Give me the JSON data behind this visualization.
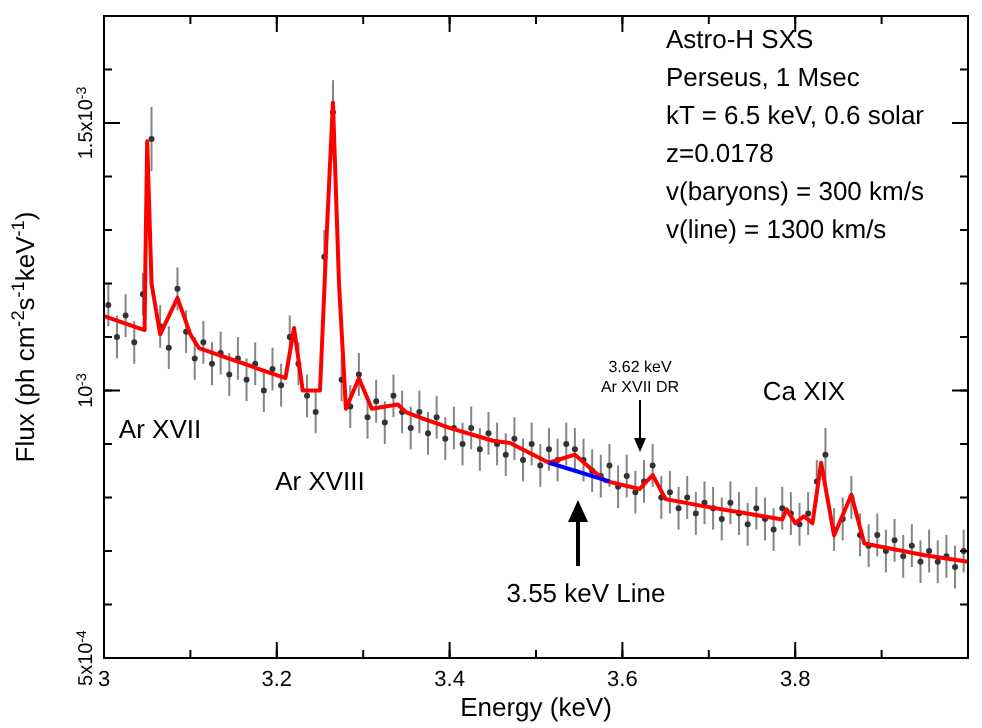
{
  "chart_data": {
    "type": "scatter",
    "xlabel": "Energy (keV)",
    "ylabel": "Flux (ph cm$^{-2}$s$^{-1}$keV$^{-1}$)",
    "xlim": [
      3,
      4
    ],
    "xticks": [
      3,
      3.2,
      3.4,
      3.6,
      3.8
    ],
    "ylim": [
      0.0005,
      0.0017
    ],
    "yticks": [
      {
        "value": 0.0005,
        "label": "5x10$^{-4}$"
      },
      {
        "value": 0.001,
        "label": "10$^{-3}$"
      },
      {
        "value": 0.0015,
        "label": "1.5x10$^{-3}$"
      }
    ],
    "grid": false,
    "series": [
      {
        "color": "#333333",
        "marker": "circle",
        "x": [
          3.005,
          3.015,
          3.025,
          3.035,
          3.045,
          3.055,
          3.065,
          3.075,
          3.085,
          3.095,
          3.105,
          3.115,
          3.125,
          3.135,
          3.145,
          3.155,
          3.165,
          3.175,
          3.185,
          3.195,
          3.205,
          3.215,
          3.225,
          3.235,
          3.245,
          3.255,
          3.265,
          3.275,
          3.285,
          3.295,
          3.305,
          3.315,
          3.325,
          3.335,
          3.345,
          3.355,
          3.365,
          3.375,
          3.385,
          3.395,
          3.405,
          3.415,
          3.425,
          3.435,
          3.445,
          3.455,
          3.465,
          3.475,
          3.485,
          3.495,
          3.505,
          3.515,
          3.525,
          3.535,
          3.545,
          3.555,
          3.565,
          3.575,
          3.585,
          3.595,
          3.605,
          3.615,
          3.625,
          3.635,
          3.645,
          3.655,
          3.665,
          3.675,
          3.685,
          3.695,
          3.705,
          3.715,
          3.725,
          3.735,
          3.745,
          3.755,
          3.765,
          3.775,
          3.785,
          3.795,
          3.805,
          3.815,
          3.825,
          3.835,
          3.845,
          3.855,
          3.865,
          3.875,
          3.885,
          3.895,
          3.905,
          3.915,
          3.925,
          3.935,
          3.945,
          3.955,
          3.965,
          3.975,
          3.985,
          3.995
        ],
        "values": [
          0.00116,
          0.0011,
          0.00114,
          0.00109,
          0.00118,
          0.00147,
          0.00112,
          0.00108,
          0.00119,
          0.00111,
          0.00106,
          0.00109,
          0.00105,
          0.00107,
          0.00103,
          0.00106,
          0.00102,
          0.00105,
          0.001,
          0.00104,
          0.00101,
          0.0011,
          0.00105,
          0.00099,
          0.00096,
          0.00125,
          0.00152,
          0.00102,
          0.00097,
          0.00103,
          0.00095,
          0.00098,
          0.00094,
          0.00099,
          0.00096,
          0.00093,
          0.00096,
          0.00092,
          0.00095,
          0.00091,
          0.00093,
          0.0009,
          0.00093,
          0.00089,
          0.00092,
          0.0009,
          0.00088,
          0.00091,
          0.00087,
          0.0009,
          0.00086,
          0.00089,
          0.00087,
          0.0009,
          0.00089,
          0.00087,
          0.00085,
          0.00084,
          0.00086,
          0.00082,
          0.00084,
          0.00081,
          0.00083,
          0.00086,
          0.0008,
          0.00081,
          0.00078,
          0.0008,
          0.00077,
          0.00079,
          0.00078,
          0.00076,
          0.00079,
          0.00077,
          0.00075,
          0.00078,
          0.00076,
          0.00074,
          0.00078,
          0.00077,
          0.00075,
          0.00077,
          0.00083,
          0.00088,
          0.00074,
          0.00076,
          0.0008,
          0.00073,
          0.00071,
          0.00073,
          0.0007,
          0.00072,
          0.00069,
          0.00071,
          0.00068,
          0.0007,
          0.00068,
          0.00069,
          0.00067,
          0.0007
        ],
        "errors": [
          4e-05,
          4e-05,
          4e-05,
          4e-05,
          4e-05,
          6e-05,
          4e-05,
          4e-05,
          4e-05,
          4e-05,
          4e-05,
          4e-05,
          4e-05,
          4e-05,
          4e-05,
          4e-05,
          4e-05,
          4e-05,
          4e-05,
          4e-05,
          4e-05,
          4e-05,
          4e-05,
          4e-05,
          4e-05,
          5e-05,
          6e-05,
          4e-05,
          4e-05,
          4e-05,
          4e-05,
          4e-05,
          4e-05,
          4e-05,
          4e-05,
          4e-05,
          4e-05,
          4e-05,
          4e-05,
          4e-05,
          4e-05,
          4e-05,
          4e-05,
          4e-05,
          4e-05,
          4e-05,
          4e-05,
          4e-05,
          4e-05,
          4e-05,
          4e-05,
          4e-05,
          4e-05,
          4e-05,
          4e-05,
          4e-05,
          4e-05,
          4e-05,
          4e-05,
          4e-05,
          4e-05,
          4e-05,
          4e-05,
          4e-05,
          4e-05,
          4e-05,
          4e-05,
          4e-05,
          4e-05,
          4e-05,
          4e-05,
          4e-05,
          4e-05,
          4e-05,
          4e-05,
          4e-05,
          4e-05,
          4e-05,
          4e-05,
          4e-05,
          4e-05,
          4e-05,
          4e-05,
          5e-05,
          4e-05,
          4e-05,
          4e-05,
          4e-05,
          4e-05,
          4e-05,
          4e-05,
          4e-05,
          4e-05,
          4e-05,
          4e-05,
          4e-05,
          4e-05,
          4e-05,
          4e-05,
          4e-05
        ]
      },
      {
        "type": "line",
        "color": "#ff0000",
        "line_style": "solid",
        "x": [
          3.0,
          3.047,
          3.048,
          3.05,
          3.055,
          3.065,
          3.085,
          3.1,
          3.11,
          3.21,
          3.22,
          3.23,
          3.25,
          3.258,
          3.265,
          3.272,
          3.28,
          3.295,
          3.31,
          3.34,
          3.35,
          3.37,
          3.4,
          3.45,
          3.47,
          3.515,
          3.545,
          3.58,
          3.62,
          3.635,
          3.65,
          3.7,
          3.785,
          3.79,
          3.8,
          3.81,
          3.82,
          3.83,
          3.845,
          3.865,
          3.88,
          3.95,
          4.0
        ],
        "values": [
          0.001139,
          0.001113,
          0.00125,
          0.001466,
          0.0012,
          0.001105,
          0.001173,
          0.001105,
          0.001079,
          0.001023,
          0.001117,
          0.001,
          0.001,
          0.0013,
          0.001538,
          0.0012,
          0.000966,
          0.001023,
          0.000966,
          0.000974,
          0.000959,
          0.000947,
          0.00093,
          0.000906,
          0.000902,
          0.000865,
          0.00088,
          0.000831,
          0.000816,
          0.000842,
          0.000797,
          0.000782,
          0.000759,
          0.000778,
          0.000752,
          0.000765,
          0.000752,
          0.000865,
          0.000729,
          0.000805,
          0.000714,
          0.000692,
          0.00068
        ]
      },
      {
        "type": "line",
        "color": "#0000ff",
        "line_style": "solid",
        "x": [
          3.515,
          3.585
        ],
        "values": [
          0.000865,
          0.00083
        ]
      }
    ],
    "annotations": [
      "Astro-H SXS",
      "Perseus, 1 Msec",
      "kT = 6.5 keV, 0.6 solar",
      "z=0.0178",
      "v(baryons) = 300 km/s",
      "v(line) = 1300 km/s",
      "Ar XVII",
      "Ar XVIII",
      "3.62 keV\nAr XVII DR",
      "Ca XIX",
      "3.55 keV Line"
    ]
  }
}
